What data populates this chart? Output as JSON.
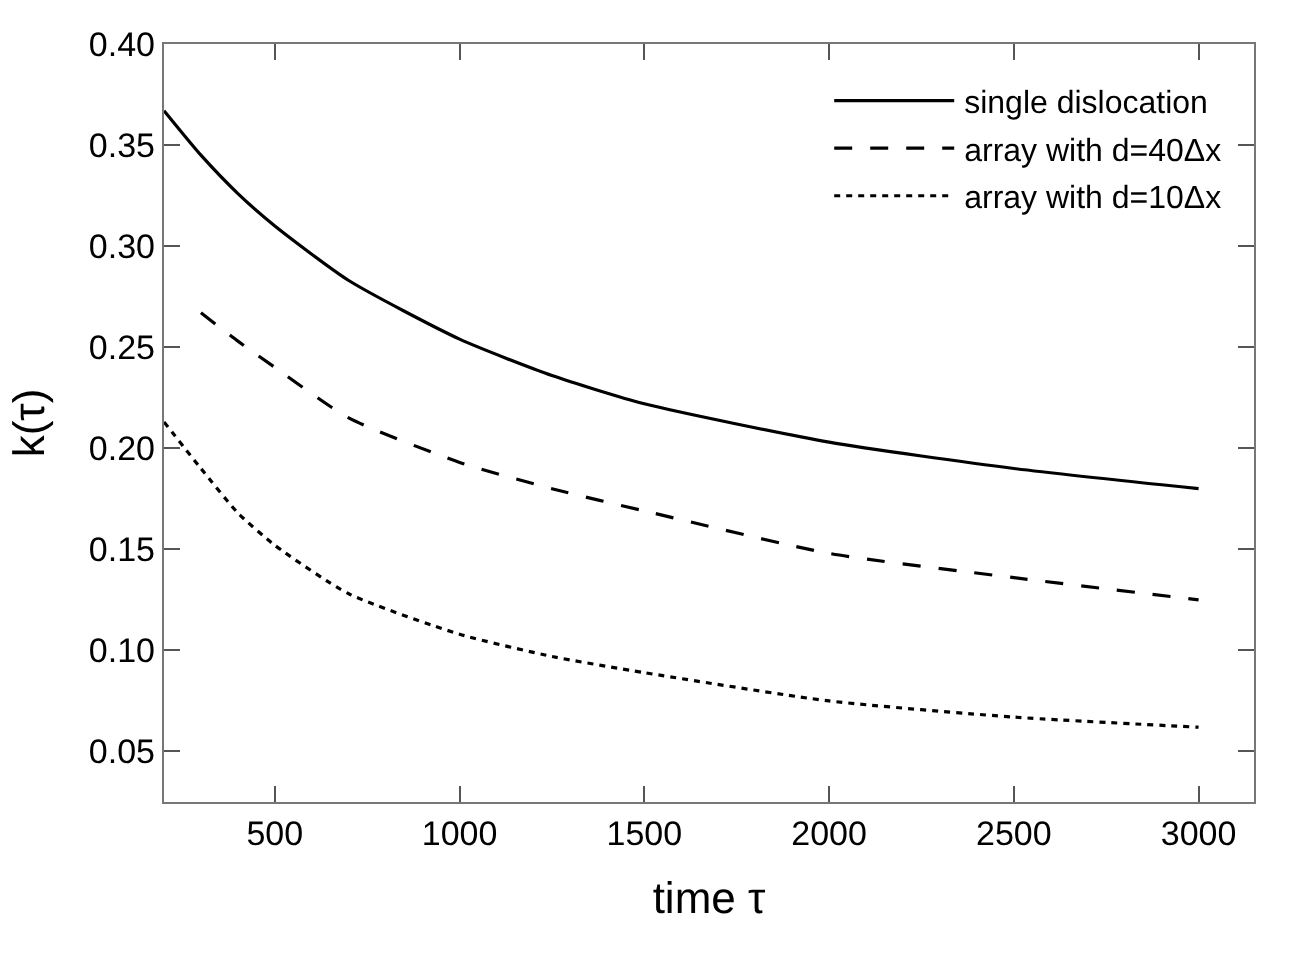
{
  "chart_data": {
    "type": "line",
    "xlabel": "time τ",
    "ylabel": "k(τ)",
    "xlim": [
      200,
      3150
    ],
    "xticks": [
      500,
      1000,
      1500,
      2000,
      2500,
      3000
    ],
    "ylim": [
      0.025,
      0.4
    ],
    "yticks": [
      {
        "value": 0.05,
        "label": "0.05"
      },
      {
        "value": 0.1,
        "label": "0.10"
      },
      {
        "value": 0.15,
        "label": "0.15"
      },
      {
        "value": 0.2,
        "label": "0.20"
      },
      {
        "value": 0.25,
        "label": "0.25"
      },
      {
        "value": 0.3,
        "label": "0.30"
      },
      {
        "value": 0.35,
        "label": "0.35"
      },
      {
        "value": 0.4,
        "label": "0.40"
      }
    ],
    "legend": "top right",
    "series": [
      {
        "name": "single dislocation",
        "color": "#000000",
        "line_style": "solid",
        "x": [
          200,
          300,
          400,
          500,
          700,
          1000,
          1250,
          1500,
          2000,
          2500,
          3000
        ],
        "values": [
          0.367,
          0.345,
          0.326,
          0.31,
          0.283,
          0.254,
          0.236,
          0.222,
          0.203,
          0.19,
          0.18
        ]
      },
      {
        "name": "array with d=40Δx",
        "color": "#000000",
        "line_style": "dashed",
        "x": [
          300,
          400,
          500,
          700,
          1000,
          1250,
          1500,
          2000,
          2500,
          3000
        ],
        "values": [
          0.267,
          0.253,
          0.24,
          0.215,
          0.193,
          0.18,
          0.169,
          0.148,
          0.136,
          0.125
        ]
      },
      {
        "name": "array with d=10Δx",
        "color": "#000000",
        "line_style": "dotted",
        "x": [
          200,
          300,
          400,
          500,
          700,
          1000,
          1250,
          1500,
          2000,
          2500,
          3000
        ],
        "values": [
          0.213,
          0.19,
          0.168,
          0.152,
          0.128,
          0.108,
          0.097,
          0.089,
          0.075,
          0.067,
          0.062
        ]
      }
    ]
  }
}
